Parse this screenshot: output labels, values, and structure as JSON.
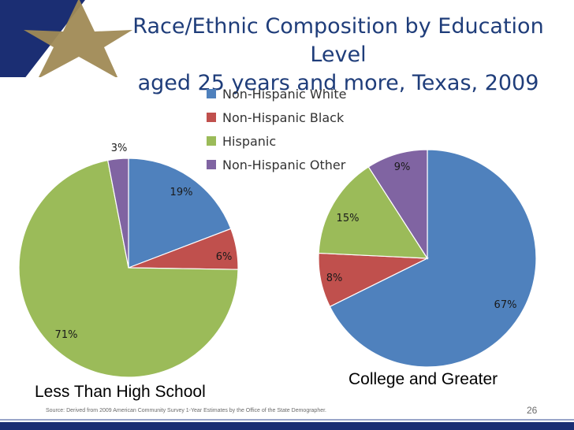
{
  "slide": {
    "title_line1": "Race/Ethnic Composition by Education Level",
    "title_line2": "aged 25 years and more, Texas, 2009",
    "source": "Source: Derived from 2009 American Community Survey 1-Year Estimates by the Office of the State Demographer.",
    "page_number": "26",
    "title_color": "#1f3d7a",
    "banner_color": "#1b2e73",
    "star_color": "#a08a55"
  },
  "legend": [
    {
      "label": "Non-Hispanic White",
      "color": "#4f81bd"
    },
    {
      "label": "Non-Hispanic Black",
      "color": "#c0504d"
    },
    {
      "label": "Hispanic",
      "color": "#9bbb59"
    },
    {
      "label": "Non-Hispanic Other",
      "color": "#8064a2"
    }
  ],
  "chart_data": [
    {
      "type": "pie",
      "title": "Less Than High School",
      "categories": [
        "Non-Hispanic White",
        "Non-Hispanic Black",
        "Hispanic",
        "Non-Hispanic Other"
      ],
      "values": [
        19,
        6,
        71,
        3
      ],
      "labels": [
        "19%",
        "6%",
        "71%",
        "3%"
      ],
      "colors": [
        "#4f81bd",
        "#c0504d",
        "#9bbb59",
        "#8064a2"
      ]
    },
    {
      "type": "pie",
      "title": "College and Greater",
      "categories": [
        "Non-Hispanic White",
        "Non-Hispanic Black",
        "Hispanic",
        "Non-Hispanic Other"
      ],
      "values": [
        67,
        8,
        15,
        9
      ],
      "labels": [
        "67%",
        "8%",
        "15%",
        "9%"
      ],
      "colors": [
        "#4f81bd",
        "#c0504d",
        "#9bbb59",
        "#8064a2"
      ]
    }
  ]
}
